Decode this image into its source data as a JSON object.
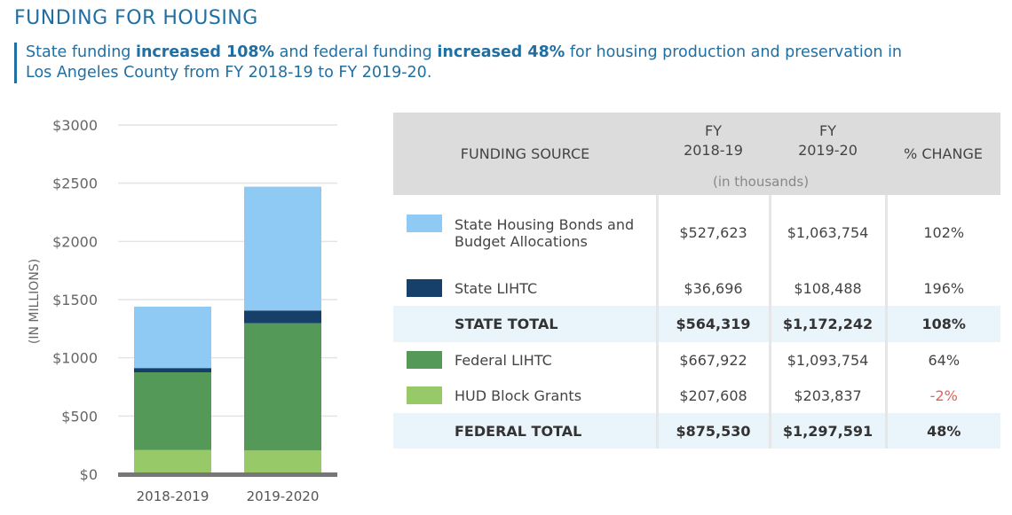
{
  "header": {
    "title": "FUNDING FOR HOUSING",
    "sub_1": "State funding ",
    "sub_2": "increased 108%",
    "sub_3": " and federal funding ",
    "sub_4": "increased 48%",
    "sub_5": " for housing production and preservation in Los Angeles County from FY 2018-19 to FY 2019-20."
  },
  "chart_data": {
    "type": "bar",
    "stacked": true,
    "categories": [
      "2018-2019",
      "2019-2020"
    ],
    "ylabel": "(IN MILLIONS)",
    "ylim": [
      0,
      3000
    ],
    "yticks": [
      0,
      500,
      1000,
      1500,
      2000,
      2500,
      3000
    ],
    "ytick_labels": [
      "$0",
      "$500",
      "$1000",
      "$1500",
      "$2000",
      "$2500",
      "$3000"
    ],
    "grid": true,
    "series": [
      {
        "name": "HUD Block Grants",
        "color": "#97c968",
        "values": [
          207.6,
          203.8
        ]
      },
      {
        "name": "Federal LIHTC",
        "color": "#559958",
        "values": [
          667.9,
          1093.8
        ]
      },
      {
        "name": "State LIHTC",
        "color": "#16406a",
        "values": [
          36.7,
          108.5
        ]
      },
      {
        "name": "State Housing Bonds and Budget Allocations",
        "color": "#8fcaf5",
        "values": [
          527.6,
          1063.8
        ]
      }
    ]
  },
  "table": {
    "headers": {
      "source": "FUNDING SOURCE",
      "fy1_a": "FY",
      "fy1_b": "2018-19",
      "fy2_a": "FY",
      "fy2_b": "2019-20",
      "change": "% CHANGE",
      "units": "(in thousands)"
    },
    "rows": [
      {
        "source": "State Housing Bonds and Budget Allocations",
        "color": "#8fcaf5",
        "fy1": "$527,623",
        "fy2": "$1,063,754",
        "change": "102%"
      },
      {
        "source": "State LIHTC",
        "color": "#16406a",
        "fy1": "$36,696",
        "fy2": "$108,488",
        "change": "196%"
      },
      {
        "source": "STATE TOTAL",
        "fy1": "$564,319",
        "fy2": "$1,172,242",
        "change": "108%"
      },
      {
        "source": "Federal LIHTC",
        "color": "#559958",
        "fy1": "$667,922",
        "fy2": "$1,093,754",
        "change": "64%"
      },
      {
        "source": "HUD Block Grants",
        "color": "#97c968",
        "fy1": "$207,608",
        "fy2": "$203,837",
        "change": "-2%"
      },
      {
        "source": "FEDERAL TOTAL",
        "fy1": "$875,530",
        "fy2": "$1,297,591",
        "change": "48%"
      }
    ]
  }
}
